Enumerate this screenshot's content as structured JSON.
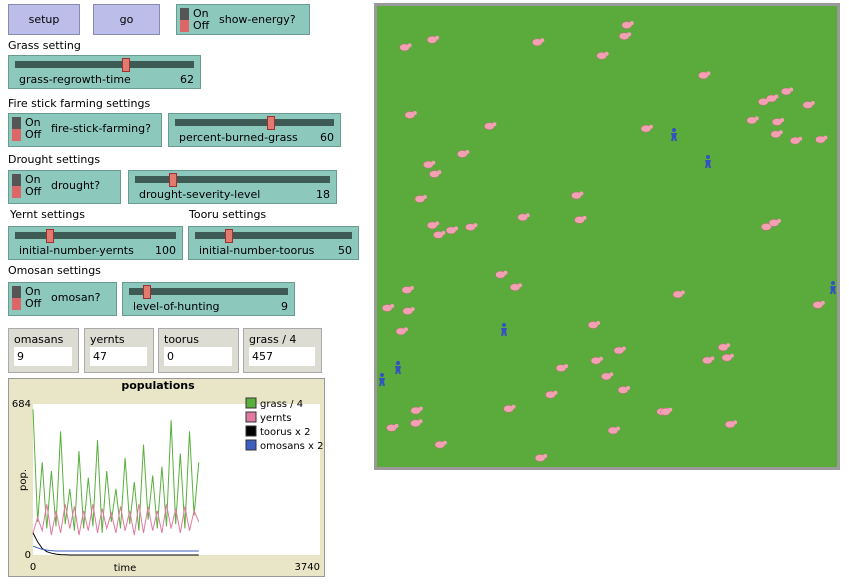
{
  "buttons": [
    "setup",
    "go"
  ],
  "switches": [
    {
      "on": "On",
      "off": "Off",
      "label": "show-energy?"
    },
    {
      "on": "On",
      "off": "Off",
      "label": "fire-stick-farming?"
    },
    {
      "on": "On",
      "off": "Off",
      "label": "drought?"
    },
    {
      "on": "On",
      "off": "Off",
      "label": "omosan?"
    }
  ],
  "section_labels": [
    "Grass setting",
    "Fire stick farming settings",
    "Drought settings",
    "Yernt settings",
    "Tooru settings",
    "Omosan settings"
  ],
  "sliders": [
    {
      "label": "grass-regrowth-time",
      "value": 62,
      "min": 0,
      "max": 100
    },
    {
      "label": "percent-burned-grass",
      "value": 60,
      "min": 0,
      "max": 100
    },
    {
      "label": "drought-severity-level",
      "value": 18,
      "min": 0,
      "max": 100
    },
    {
      "label": "initial-number-yernts",
      "value": 100,
      "min": 0,
      "max": 500
    },
    {
      "label": "initial-number-toorus",
      "value": 50,
      "min": 0,
      "max": 250
    },
    {
      "label": "level-of-hunting",
      "value": 9,
      "min": 0,
      "max": 100
    }
  ],
  "monitors": [
    {
      "label": "omasans",
      "value": 9
    },
    {
      "label": "yernts",
      "value": 47
    },
    {
      "label": "toorus",
      "value": 0
    },
    {
      "label": "grass / 4",
      "value": 457
    }
  ],
  "plot": {
    "type": "line",
    "title": "populations",
    "x_label": "time",
    "y_label": "pop.",
    "xlim": [
      0,
      3740
    ],
    "ylim": [
      0,
      684
    ],
    "xticks": [
      0,
      3740
    ],
    "yticks": [
      0,
      684
    ],
    "x": [
      0,
      60,
      120,
      180,
      240,
      300,
      360,
      420,
      480,
      540,
      600,
      660,
      720,
      780,
      840,
      900,
      960,
      1020,
      1080,
      1140,
      1200,
      1260,
      1320,
      1380,
      1440,
      1500,
      1560,
      1620,
      1680,
      1740,
      1800,
      1860,
      1920,
      1980,
      2040,
      2100,
      2160
    ],
    "series": [
      {
        "name": "grass / 4",
        "color": "#59b03c",
        "values": [
          660,
          150,
          420,
          120,
          380,
          130,
          560,
          140,
          300,
          110,
          470,
          120,
          350,
          130,
          520,
          100,
          380,
          150,
          300,
          120,
          440,
          140,
          330,
          110,
          500,
          160,
          360,
          120,
          400,
          130,
          610,
          140,
          460,
          120,
          560,
          180,
          420
        ]
      },
      {
        "name": "yernts",
        "color": "#e07aa0",
        "values": [
          100,
          170,
          110,
          230,
          90,
          200,
          100,
          230,
          120,
          220,
          90,
          200,
          110,
          230,
          100,
          210,
          120,
          190,
          100,
          220,
          110,
          200,
          90,
          230,
          100,
          220,
          110,
          200,
          100,
          230,
          120,
          210,
          100,
          220,
          110,
          200,
          150
        ]
      },
      {
        "name": "toorus x 2",
        "color": "#000000",
        "values": [
          100,
          60,
          30,
          15,
          8,
          4,
          2,
          1,
          0,
          0,
          0,
          0,
          0,
          0,
          0,
          0,
          0,
          0,
          0,
          0,
          0,
          0,
          0,
          0,
          0,
          0,
          0,
          0,
          0,
          0,
          0,
          0,
          0,
          0,
          0,
          0,
          0
        ]
      },
      {
        "name": "omosans x 2",
        "color": "#3d5fbf",
        "values": [
          40,
          32,
          26,
          22,
          20,
          18,
          18,
          18,
          18,
          18,
          18,
          18,
          18,
          18,
          18,
          18,
          18,
          18,
          18,
          18,
          18,
          18,
          18,
          18,
          18,
          18,
          18,
          18,
          18,
          18,
          18,
          18,
          18,
          18,
          18,
          18,
          18
        ]
      }
    ]
  }
}
